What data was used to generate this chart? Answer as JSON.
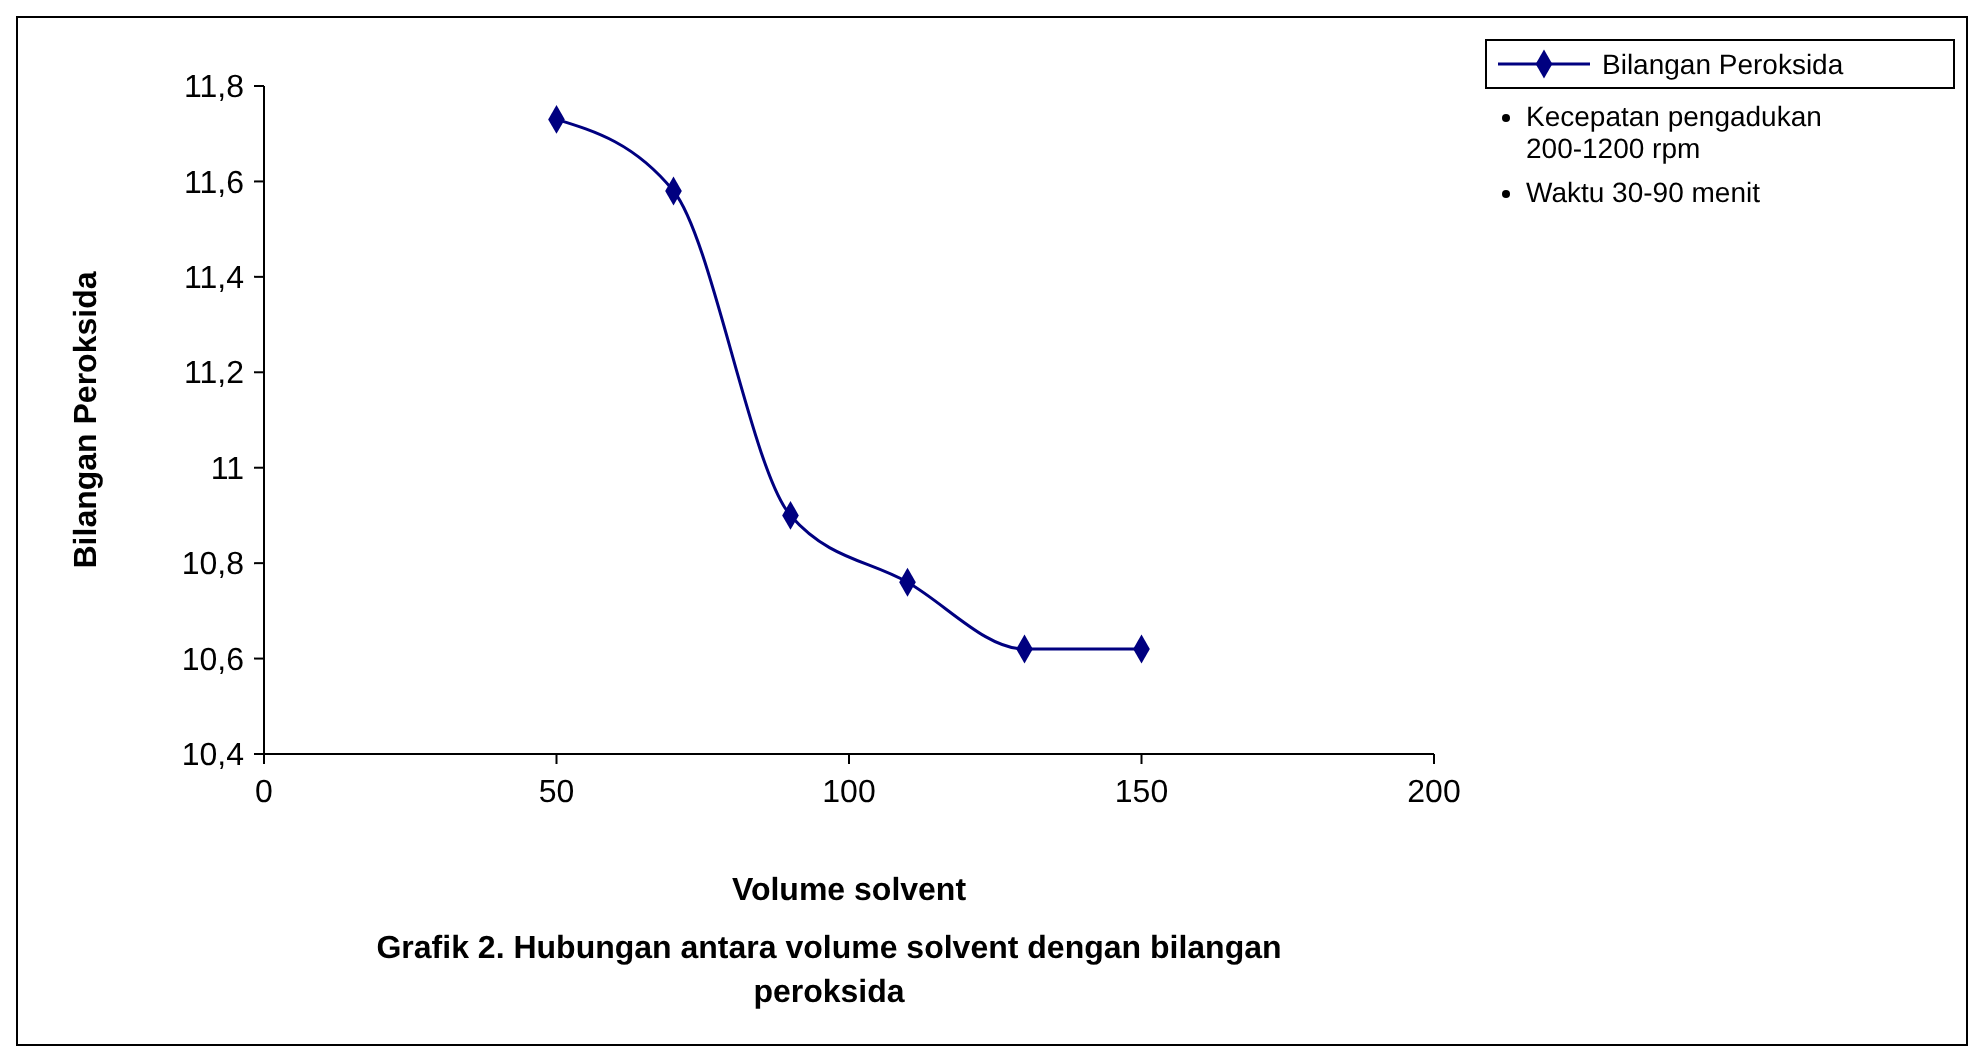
{
  "chart_data": {
    "type": "line",
    "xlabel": "Volume solvent",
    "ylabel": "Bilangan Peroksida",
    "title": "Grafik 2. Hubungan antara volume solvent dengan bilangan peroksida",
    "x": [
      50,
      70,
      90,
      110,
      130,
      150
    ],
    "series": [
      {
        "name": "Bilangan Peroksida",
        "color": "#000080",
        "values": [
          11.73,
          11.58,
          10.9,
          10.76,
          10.62,
          10.62
        ]
      }
    ],
    "xlim": [
      0,
      200
    ],
    "xticks": [
      0,
      50,
      100,
      150,
      200
    ],
    "ylim": [
      10.4,
      11.8
    ],
    "yticks": [
      {
        "value": 10.4,
        "label": "10,4"
      },
      {
        "value": 10.6,
        "label": "10,6"
      },
      {
        "value": 10.8,
        "label": "10,8"
      },
      11,
      {
        "value": 11.2,
        "label": "11,2"
      },
      {
        "value": 11.4,
        "label": "11,4"
      },
      {
        "value": 11.6,
        "label": "11,6"
      },
      {
        "value": 11.8,
        "label": "11,8"
      }
    ],
    "grid": false,
    "legend": "top right",
    "marker": "diamond",
    "line_style": "solid",
    "annotations": [
      "Kecepatan pengadukan 200-1200 rpm",
      "Waktu 30-90 menit"
    ]
  }
}
